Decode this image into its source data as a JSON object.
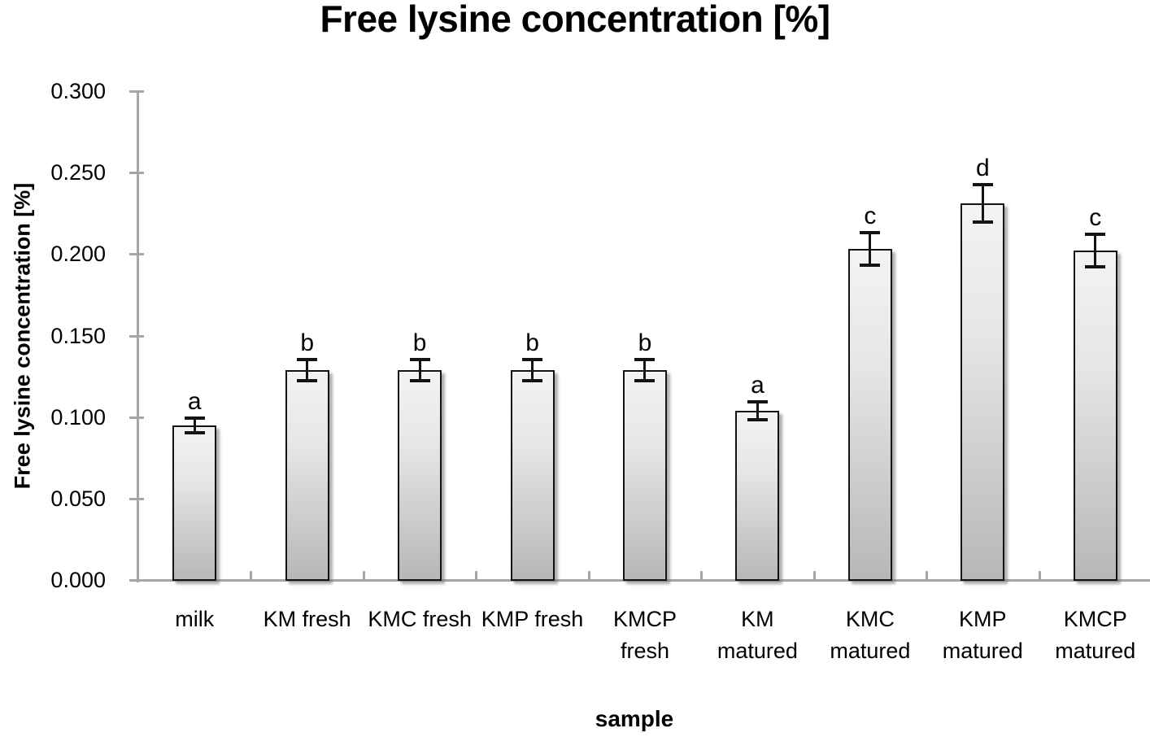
{
  "chart_data": {
    "type": "bar",
    "title": "Free lysine concentration [%]",
    "ylabel": "Free lysine concentration [%]",
    "xlabel": "sample",
    "ylim": [
      0.0,
      0.3
    ],
    "ytick_step": 0.05,
    "ytick_labels": [
      "0.000",
      "0.050",
      "0.100",
      "0.150",
      "0.200",
      "0.250",
      "0.300"
    ],
    "grid": false,
    "legend": false,
    "categories": [
      "milk",
      "KM fresh",
      "KMC fresh",
      "KMP fresh",
      "KMCP fresh",
      "KM matured",
      "KMC matured",
      "KMP matured",
      "KMCP matured"
    ],
    "category_label_lines": [
      [
        "milk"
      ],
      [
        "KM fresh"
      ],
      [
        "KMC fresh"
      ],
      [
        "KMP fresh"
      ],
      [
        "KMCP",
        "fresh"
      ],
      [
        "KM",
        "matured"
      ],
      [
        "KMC",
        "matured"
      ],
      [
        "KMP",
        "matured"
      ],
      [
        "KMCP",
        "matured"
      ]
    ],
    "values": [
      0.095,
      0.129,
      0.129,
      0.129,
      0.129,
      0.104,
      0.203,
      0.231,
      0.202
    ],
    "errors": [
      0.0045,
      0.0065,
      0.0065,
      0.0065,
      0.0065,
      0.0055,
      0.01,
      0.0115,
      0.01
    ],
    "significance_letters": [
      "a",
      "b",
      "b",
      "b",
      "b",
      "a",
      "c",
      "d",
      "c"
    ],
    "colors": {
      "bar_fill_top": "#f3f3f1",
      "bar_fill_bottom": "#b7b7b7",
      "bar_border": "#141414",
      "error_bar": "#141414",
      "axis_line": "#a6a6a6",
      "text": "#000000",
      "background": "#ffffff"
    }
  }
}
